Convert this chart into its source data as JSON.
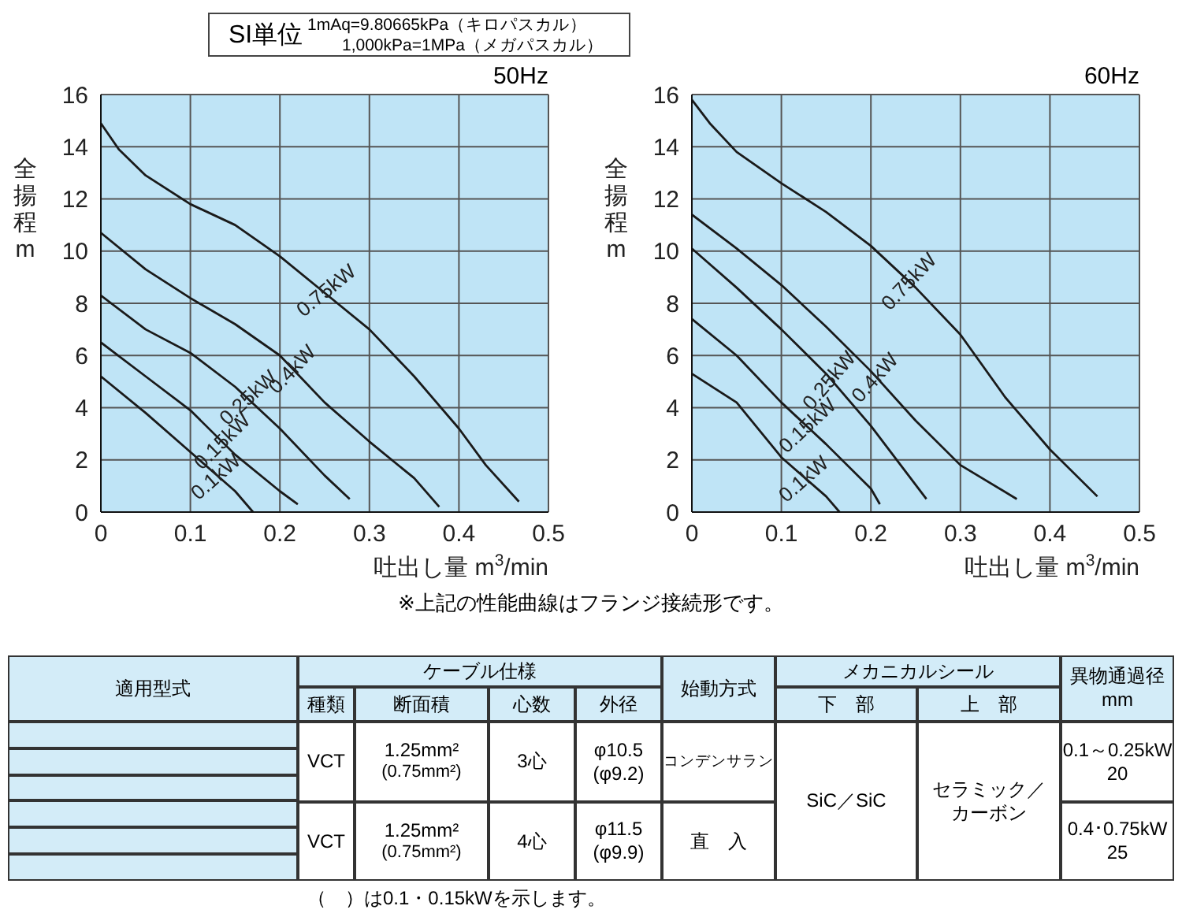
{
  "chart_data": [
    {
      "type": "line",
      "title": "50Hz",
      "xlabel": "吐出し量 m$^{3}$/min",
      "ylabel": "全揚程 m",
      "xlim": [
        0,
        0.5
      ],
      "ylim": [
        0,
        16
      ],
      "xticks": [
        0,
        0.1,
        0.2,
        0.3,
        0.4,
        0.5
      ],
      "yticks": [
        0,
        2,
        4,
        6,
        8,
        10,
        12,
        14,
        16
      ],
      "grid": true,
      "annotations": [
        "SI単位",
        "1mAq=9.80665kPa（キロパスカル）",
        "1,000kPa=1MPa（メガパスカル）",
        "※上記の性能曲線はフランジ接続形です。"
      ],
      "series": [
        {
          "name": "0.75kW",
          "color": "#1a1a1a",
          "x": [
            0,
            0.02,
            0.05,
            0.1,
            0.15,
            0.2,
            0.25,
            0.3,
            0.35,
            0.4,
            0.43,
            0.467
          ],
          "values": [
            14.9,
            13.9,
            12.9,
            11.8,
            11.0,
            9.8,
            8.4,
            7.0,
            5.2,
            3.2,
            1.8,
            0.4
          ]
        },
        {
          "name": "0.4kW",
          "color": "#1a1a1a",
          "x": [
            0,
            0.05,
            0.1,
            0.15,
            0.2,
            0.25,
            0.3,
            0.35,
            0.378
          ],
          "values": [
            10.7,
            9.3,
            8.2,
            7.2,
            6.0,
            4.2,
            2.7,
            1.3,
            0.2
          ]
        },
        {
          "name": "0.25kW",
          "color": "#1a1a1a",
          "x": [
            0,
            0.05,
            0.1,
            0.15,
            0.2,
            0.25,
            0.278
          ],
          "values": [
            8.3,
            7.0,
            6.1,
            4.8,
            3.2,
            1.4,
            0.5
          ]
        },
        {
          "name": "0.15kW",
          "color": "#1a1a1a",
          "x": [
            0,
            0.05,
            0.1,
            0.15,
            0.2,
            0.22
          ],
          "values": [
            6.5,
            5.2,
            3.9,
            2.2,
            0.8,
            0.3
          ]
        },
        {
          "name": "0.1kW",
          "color": "#1a1a1a",
          "x": [
            0,
            0.05,
            0.1,
            0.15,
            0.17
          ],
          "values": [
            5.2,
            3.8,
            2.3,
            0.8,
            0
          ]
        }
      ]
    },
    {
      "type": "line",
      "title": "60Hz",
      "xlabel": "吐出し量 m$^{3}$/min",
      "ylabel": "全揚程 m",
      "xlim": [
        0,
        0.5
      ],
      "ylim": [
        0,
        16
      ],
      "xticks": [
        0,
        0.1,
        0.2,
        0.3,
        0.4,
        0.5
      ],
      "yticks": [
        0,
        2,
        4,
        6,
        8,
        10,
        12,
        14,
        16
      ],
      "grid": true,
      "series": [
        {
          "name": "0.75kW",
          "color": "#1a1a1a",
          "x": [
            0,
            0.02,
            0.05,
            0.1,
            0.15,
            0.2,
            0.25,
            0.3,
            0.35,
            0.4,
            0.453
          ],
          "values": [
            15.8,
            14.9,
            13.8,
            12.6,
            11.5,
            10.2,
            8.6,
            6.8,
            4.4,
            2.4,
            0.6
          ]
        },
        {
          "name": "0.4kW",
          "color": "#1a1a1a",
          "x": [
            0,
            0.05,
            0.1,
            0.15,
            0.2,
            0.25,
            0.3,
            0.363
          ],
          "values": [
            11.4,
            10.1,
            8.7,
            7.1,
            5.4,
            3.5,
            1.8,
            0.5
          ]
        },
        {
          "name": "0.25kW",
          "color": "#1a1a1a",
          "x": [
            0,
            0.05,
            0.1,
            0.15,
            0.2,
            0.262
          ],
          "values": [
            10.1,
            8.6,
            7.0,
            5.3,
            3.3,
            0.5
          ]
        },
        {
          "name": "0.15kW",
          "color": "#1a1a1a",
          "x": [
            0,
            0.05,
            0.1,
            0.15,
            0.2,
            0.21
          ],
          "values": [
            7.4,
            6.0,
            4.2,
            2.6,
            0.9,
            0.3
          ]
        },
        {
          "name": "0.1kW",
          "color": "#1a1a1a",
          "x": [
            0,
            0.05,
            0.1,
            0.15,
            0.165
          ],
          "values": [
            5.3,
            4.2,
            2.1,
            0.6,
            0
          ]
        }
      ]
    },
    {
      "type": "other",
      "annotations": [
        "適用型式",
        "ケーブル仕様",
        "種類",
        "断面積",
        "心数",
        "外径",
        "始動方式",
        "メカニカルシール",
        "下　部",
        "上　部",
        "異物通過径",
        "mm",
        "VCT",
        "1.25mm²",
        "(0.75mm²)",
        "3心",
        "φ10.5",
        "(φ9.2)",
        "コンデンサラン",
        "SiC／SiC",
        "セラミック／カーボン",
        "0.1～0.25kW",
        "20",
        "VCT",
        "1.25mm²",
        "(0.75mm²)",
        "4心",
        "φ11.5",
        "(φ9.9)",
        "直　入",
        "0.4･0.75kW",
        "25",
        "（　）は0.1・0.15kWを示します。"
      ]
    }
  ]
}
